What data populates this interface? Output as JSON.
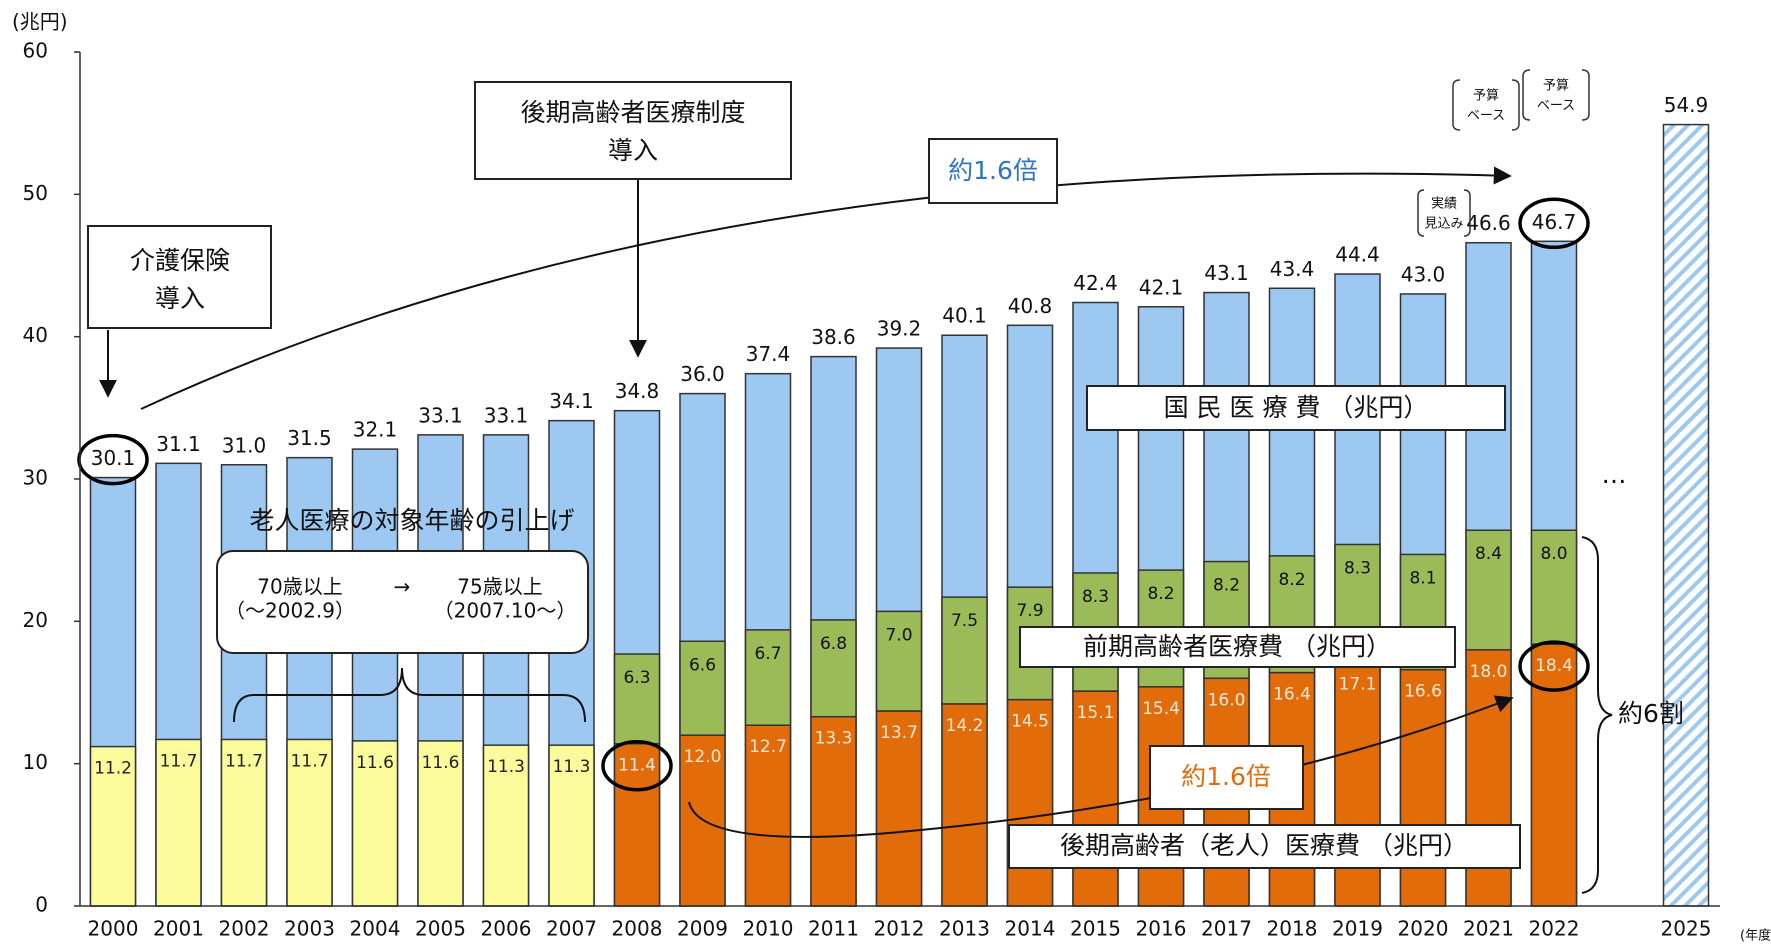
{
  "chart_data": {
    "type": "bar",
    "y_unit": "(兆円)",
    "x_unit": "(年度)",
    "categories": [
      "2000",
      "2001",
      "2002",
      "2003",
      "2004",
      "2005",
      "2006",
      "2007",
      "2008",
      "2009",
      "2010",
      "2011",
      "2012",
      "2013",
      "2014",
      "2015",
      "2016",
      "2017",
      "2018",
      "2019",
      "2020",
      "2021",
      "2022",
      "2025"
    ],
    "ylim": [
      0,
      60
    ],
    "yticks": [
      0,
      10,
      20,
      30,
      40,
      50,
      60
    ],
    "series": [
      {
        "name": "国 民 医 療 費 （兆円）",
        "color": "#9dc8f2",
        "fill_styles": [
          "solid",
          "solid",
          "solid",
          "solid",
          "solid",
          "solid",
          "solid",
          "solid",
          "solid",
          "solid",
          "solid",
          "solid",
          "solid",
          "solid",
          "solid",
          "solid",
          "solid",
          "solid",
          "solid",
          "solid",
          "solid",
          "solid",
          "solid",
          "hatched"
        ],
        "values": [
          30.1,
          31.1,
          31.0,
          31.5,
          32.1,
          33.1,
          33.1,
          34.1,
          34.8,
          36.0,
          37.4,
          38.6,
          39.2,
          40.1,
          40.8,
          42.4,
          42.1,
          43.1,
          43.4,
          44.4,
          43.0,
          46.6,
          46.7,
          54.9
        ],
        "value_labels": [
          "30.1",
          "31.1",
          "31.0",
          "31.5",
          "32.1",
          "33.1",
          "33.1",
          "34.1",
          "34.8",
          "36.0",
          "37.4",
          "38.6",
          "39.2",
          "40.1",
          "40.8",
          "42.4",
          "42.1",
          "43.1",
          "43.4",
          "44.4",
          "43.0",
          "46.6",
          "46.7",
          "54.9"
        ]
      },
      {
        "name": "後期高齢者（老人）医療費 （兆円）",
        "colors": [
          "#fbfb9c",
          "#fbfb9c",
          "#fbfb9c",
          "#fbfb9c",
          "#fbfb9c",
          "#fbfb9c",
          "#fbfb9c",
          "#fbfb9c",
          "#e36c0a",
          "#e36c0a",
          "#e36c0a",
          "#e36c0a",
          "#e36c0a",
          "#e36c0a",
          "#e36c0a",
          "#e36c0a",
          "#e36c0a",
          "#e36c0a",
          "#e36c0a",
          "#e36c0a",
          "#e36c0a",
          "#e36c0a",
          "#e36c0a",
          null
        ],
        "values": [
          11.2,
          11.7,
          11.7,
          11.7,
          11.6,
          11.6,
          11.3,
          11.3,
          11.4,
          12.0,
          12.7,
          13.3,
          13.7,
          14.2,
          14.5,
          15.1,
          15.4,
          16.0,
          16.4,
          17.1,
          16.6,
          18.0,
          18.4,
          null
        ],
        "value_labels": [
          "11.2",
          "11.7",
          "11.7",
          "11.7",
          "11.6",
          "11.6",
          "11.3",
          "11.3",
          "11.4",
          "12.0",
          "12.7",
          "13.3",
          "13.7",
          "14.2",
          "14.5",
          "15.1",
          "15.4",
          "16.0",
          "16.4",
          "17.1",
          "16.6",
          "18.0",
          "18.4",
          null
        ]
      },
      {
        "name": "前期高齢者医療費 （兆円）",
        "color": "#9bbb59",
        "values": [
          null,
          null,
          null,
          null,
          null,
          null,
          null,
          null,
          6.3,
          6.6,
          6.7,
          6.8,
          7.0,
          7.5,
          7.9,
          8.3,
          8.2,
          8.2,
          8.2,
          8.3,
          8.1,
          8.4,
          8.0,
          null
        ],
        "value_labels": [
          null,
          null,
          null,
          null,
          null,
          null,
          null,
          null,
          "6.3",
          "6.6",
          "6.7",
          "6.8",
          "7.0",
          "7.5",
          "7.9",
          "8.3",
          "8.2",
          "8.2",
          "8.2",
          "8.3",
          "8.1",
          "8.4",
          "8.0",
          null
        ]
      }
    ],
    "annotations": {
      "kaigo": [
        "介護保険",
        "導入"
      ],
      "kouki": [
        "後期高齢者医療制度",
        "導入"
      ],
      "ratio_total": "約1.6倍",
      "ratio_elderly": "約1.6倍",
      "age_change": "老人医療の対象年齢の引上げ",
      "age_from": "70歳以上",
      "age_arrow": "→",
      "age_to": "75歳以上",
      "age_from_date": "（～2002.9）",
      "age_to_date": "（2007.10～）",
      "estimate": [
        "実績",
        "見込み"
      ],
      "budget_2021": [
        "予算",
        "ベース"
      ],
      "budget_2022": [
        "予算",
        "ベース"
      ],
      "share": "約6割",
      "ellipsis": "…"
    }
  }
}
